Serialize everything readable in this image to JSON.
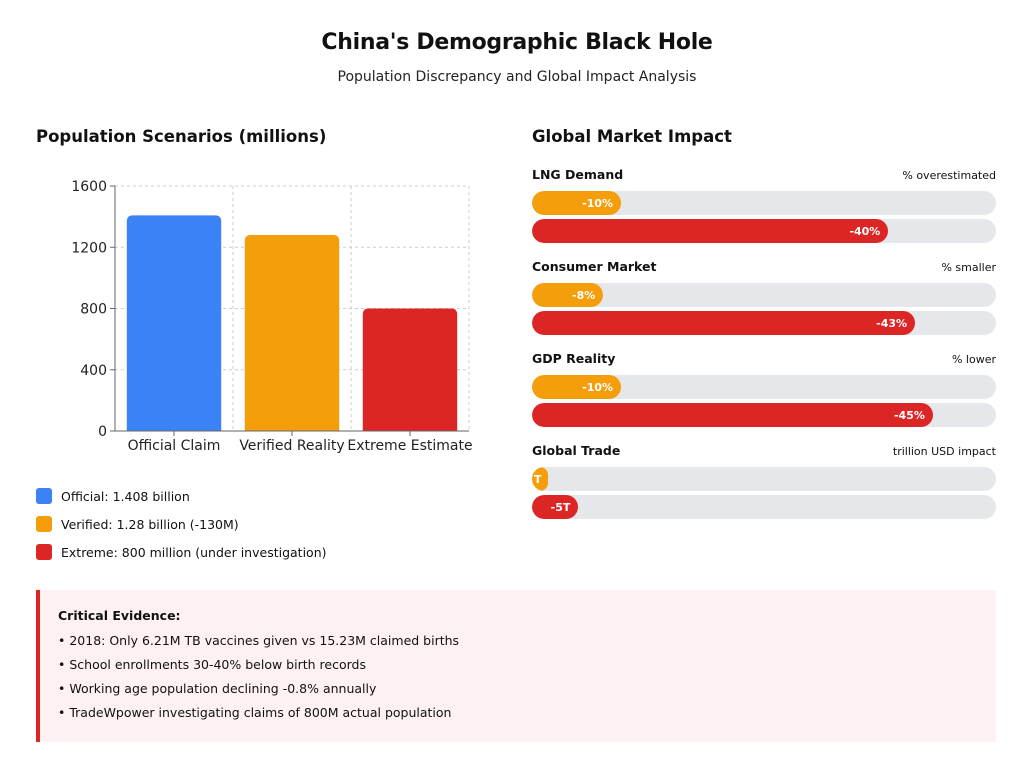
{
  "header": {
    "title": "China's Demographic Black Hole",
    "subtitle": "Population Discrepancy and Global Impact Analysis"
  },
  "left_panel": {
    "heading": "Population Scenarios (millions)",
    "legend": [
      {
        "label": "Official: 1.408 billion",
        "color": "#3b82f6"
      },
      {
        "label": "Verified: 1.28 billion (-130M)",
        "color": "#f59e0b"
      },
      {
        "label": "Extreme: 800 million (under investigation)",
        "color": "#dc2626"
      }
    ]
  },
  "right_panel": {
    "heading": "Global Market Impact",
    "items": [
      {
        "label": "LNG Demand",
        "unit": "% overestimated",
        "bars": [
          {
            "value": 10,
            "text": "-10%",
            "color": "#f59e0b"
          },
          {
            "value": 40,
            "text": "-40%",
            "color": "#dc2626"
          }
        ]
      },
      {
        "label": "Consumer Market",
        "unit": "% smaller",
        "bars": [
          {
            "value": 8,
            "text": "-8%",
            "color": "#f59e0b"
          },
          {
            "value": 43,
            "text": "-43%",
            "color": "#dc2626"
          }
        ]
      },
      {
        "label": "GDP Reality",
        "unit": "% lower",
        "bars": [
          {
            "value": 10,
            "text": "-10%",
            "color": "#f59e0b"
          },
          {
            "value": 45,
            "text": "-45%",
            "color": "#dc2626"
          }
        ]
      },
      {
        "label": "Global Trade",
        "unit": "trillion USD impact",
        "bars": [
          {
            "value": 1,
            "text": "T",
            "color": "#f59e0b"
          },
          {
            "value": 5,
            "text": "-5T",
            "color": "#dc2626"
          }
        ]
      }
    ]
  },
  "evidence": {
    "title": "Critical Evidence:",
    "items": [
      "• 2018: Only 6.21M TB vaccines given vs 15.23M claimed births",
      "• School enrollments 30-40% below birth records",
      "• Working age population declining -0.8% annually",
      "• TradeWpower investigating claims of 800M actual population"
    ]
  },
  "chart_data": {
    "type": "bar",
    "categories": [
      "Official Claim",
      "Verified Reality",
      "Extreme Estimate"
    ],
    "values": [
      1408,
      1280,
      800
    ],
    "colors": [
      "#3b82f6",
      "#f59e0b",
      "#dc2626"
    ],
    "title": "Population Scenarios (millions)",
    "xlabel": "",
    "ylabel": "",
    "ylim": [
      0,
      1600
    ],
    "yticks": [
      0,
      400,
      800,
      1200,
      1600
    ],
    "grid": true
  }
}
